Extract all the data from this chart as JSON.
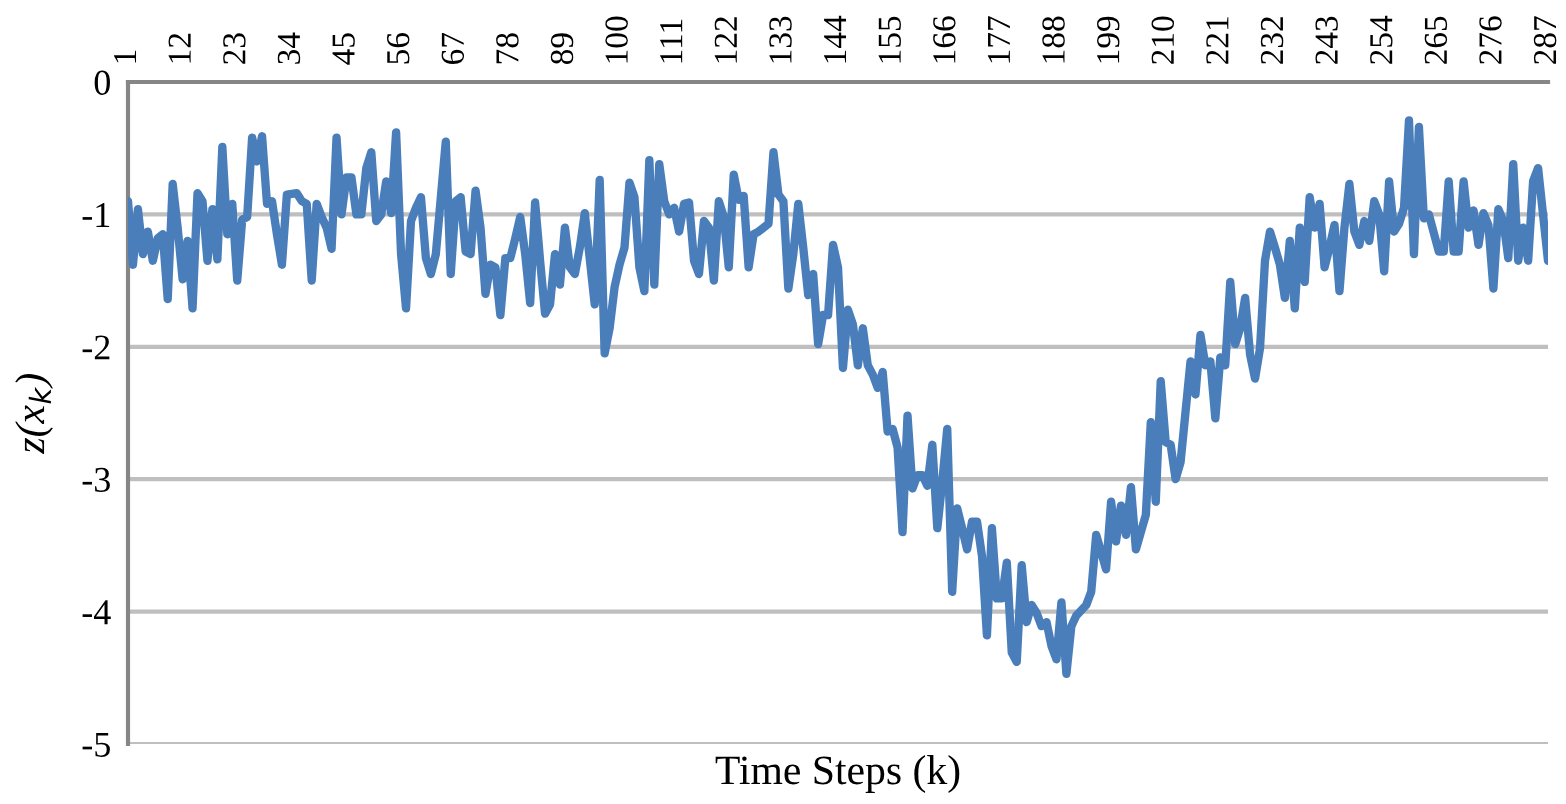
{
  "chart_data": {
    "type": "line",
    "xlabel": "Time Steps (k)",
    "ylabel": "z(x$_{k}$)",
    "x": [
      1,
      2,
      3,
      4,
      5,
      6,
      7,
      8,
      9,
      10,
      11,
      12,
      13,
      14,
      15,
      16,
      17,
      18,
      19,
      20,
      21,
      22,
      23,
      24,
      25,
      26,
      27,
      28,
      29,
      30,
      31,
      32,
      33,
      35,
      36,
      37,
      38,
      39,
      40,
      41,
      42,
      43,
      44,
      45,
      46,
      47,
      48,
      49,
      50,
      51,
      52,
      53,
      54,
      55,
      56,
      57,
      58,
      59,
      60,
      61,
      62,
      63,
      65,
      66,
      67,
      68,
      69,
      70,
      71,
      72,
      73,
      74,
      75,
      76,
      77,
      78,
      79,
      80,
      81,
      82,
      83,
      84,
      85,
      86,
      87,
      88,
      89,
      90,
      91,
      92,
      93,
      95,
      96,
      97,
      98,
      99,
      100,
      101,
      102,
      103,
      104,
      105,
      106,
      107,
      108,
      109,
      110,
      111,
      112,
      113,
      114,
      115,
      116,
      117,
      118,
      119,
      120,
      121,
      122,
      123,
      124,
      125,
      126,
      127,
      128,
      130,
      131,
      132,
      133,
      134,
      135,
      136,
      137,
      138,
      139,
      140,
      141,
      142,
      143,
      144,
      145,
      146,
      147,
      148,
      149,
      150,
      151,
      152,
      153,
      154,
      155,
      156,
      157,
      158,
      159,
      160,
      161,
      162,
      163,
      164,
      165,
      166,
      167,
      168,
      169,
      170,
      171,
      172,
      173,
      174,
      175,
      176,
      177,
      178,
      179,
      180,
      181,
      182,
      183,
      184,
      185,
      186,
      187,
      188,
      189,
      190,
      191,
      192,
      194,
      195,
      196,
      198,
      199,
      200,
      201,
      202,
      203,
      204,
      205,
      206,
      207,
      208,
      209,
      210,
      211,
      212,
      213,
      215,
      216,
      217,
      218,
      219,
      220,
      221,
      222,
      223,
      224,
      225,
      226,
      227,
      228,
      229,
      230,
      231,
      232,
      233,
      234,
      235,
      236,
      237,
      238,
      239,
      240,
      241,
      242,
      243,
      244,
      245,
      246,
      247,
      248,
      249,
      250,
      251,
      252,
      253,
      254,
      255,
      256,
      257,
      258,
      259,
      260,
      261,
      262,
      263,
      265,
      266,
      267,
      268,
      269,
      270,
      271,
      272,
      273,
      274,
      275,
      276,
      277,
      278,
      279,
      280,
      281,
      282,
      283,
      284,
      285,
      287
    ],
    "values": [
      -0.9,
      -1.38,
      -0.96,
      -1.3,
      -1.13,
      -1.35,
      -1.18,
      -1.15,
      -1.64,
      -0.77,
      -1.1,
      -1.49,
      -1.2,
      -1.71,
      -0.84,
      -0.9,
      -1.35,
      -0.96,
      -1.34,
      -0.49,
      -1.15,
      -0.92,
      -1.5,
      -1.04,
      -1.02,
      -0.42,
      -0.6,
      -0.41,
      -0.92,
      -0.9,
      -1.15,
      -1.38,
      -0.85,
      -0.84,
      -0.9,
      -0.92,
      -1.5,
      -0.92,
      -1.02,
      -1.1,
      -1.26,
      -0.42,
      -1.0,
      -0.72,
      -0.72,
      -1.0,
      -1.0,
      -0.65,
      -0.53,
      -1.05,
      -1.0,
      -0.75,
      -0.99,
      -0.38,
      -1.3,
      -1.71,
      -1.05,
      -0.95,
      -0.87,
      -1.33,
      -1.45,
      -1.3,
      -0.45,
      -1.45,
      -0.9,
      -0.87,
      -1.28,
      -1.3,
      -0.82,
      -1.1,
      -1.6,
      -1.38,
      -1.4,
      -1.76,
      -1.33,
      -1.33,
      -1.18,
      -1.02,
      -1.3,
      -1.67,
      -0.91,
      -1.35,
      -1.75,
      -1.68,
      -1.3,
      -1.53,
      -1.1,
      -1.4,
      -1.45,
      -1.25,
      -0.99,
      -1.68,
      -0.74,
      -2.05,
      -1.86,
      -1.55,
      -1.38,
      -1.25,
      -0.76,
      -0.87,
      -1.4,
      -1.58,
      -0.59,
      -1.53,
      -0.62,
      -0.9,
      -1.0,
      -0.95,
      -1.13,
      -0.92,
      -0.91,
      -1.35,
      -1.45,
      -1.05,
      -1.1,
      -1.5,
      -0.9,
      -1.02,
      -1.4,
      -0.7,
      -0.89,
      -0.86,
      -1.4,
      -1.15,
      -1.13,
      -1.07,
      -0.53,
      -0.85,
      -0.9,
      -1.56,
      -1.3,
      -0.92,
      -1.25,
      -1.61,
      -1.45,
      -1.98,
      -1.76,
      -1.76,
      -1.23,
      -1.4,
      -2.16,
      -1.72,
      -1.83,
      -2.14,
      -1.86,
      -2.14,
      -2.21,
      -2.31,
      -2.19,
      -2.64,
      -2.62,
      -2.76,
      -3.4,
      -2.52,
      -3.07,
      -2.97,
      -2.97,
      -3.05,
      -2.74,
      -3.37,
      -3.02,
      -2.62,
      -3.85,
      -3.22,
      -3.37,
      -3.53,
      -3.32,
      -3.32,
      -3.58,
      -4.18,
      -3.37,
      -3.9,
      -3.9,
      -3.63,
      -4.31,
      -4.38,
      -3.65,
      -4.08,
      -3.95,
      -4.01,
      -4.11,
      -4.08,
      -4.26,
      -4.36,
      -3.93,
      -4.47,
      -4.11,
      -4.03,
      -3.95,
      -3.85,
      -3.42,
      -3.68,
      -3.17,
      -3.47,
      -3.2,
      -3.42,
      -3.06,
      -3.53,
      -3.4,
      -3.27,
      -2.57,
      -3.17,
      -2.26,
      -2.72,
      -2.74,
      -3.0,
      -2.87,
      -2.11,
      -2.36,
      -1.91,
      -2.14,
      -2.11,
      -2.54,
      -2.08,
      -2.14,
      -1.51,
      -1.98,
      -1.86,
      -1.63,
      -2.06,
      -2.24,
      -2.01,
      -1.35,
      -1.13,
      -1.25,
      -1.38,
      -1.63,
      -1.2,
      -1.71,
      -1.1,
      -1.51,
      -0.87,
      -1.1,
      -0.92,
      -1.4,
      -1.25,
      -1.08,
      -1.58,
      -1.1,
      -0.77,
      -1.13,
      -1.23,
      -1.05,
      -1.2,
      -0.9,
      -1.0,
      -1.43,
      -0.75,
      -1.13,
      -1.07,
      -0.95,
      -0.29,
      -1.3,
      -0.34,
      -1.03,
      -1.0,
      -1.28,
      -1.28,
      -0.75,
      -1.28,
      -1.28,
      -0.75,
      -1.1,
      -0.97,
      -1.23,
      -0.99,
      -1.08,
      -1.56,
      -0.96,
      -1.05,
      -1.33,
      -0.62,
      -1.35,
      -1.1,
      -1.35,
      -0.75,
      -0.65,
      -1.35
    ],
    "color": "#4a7ebb",
    "xlim": [
      1,
      287
    ],
    "xticks": [
      1,
      12,
      23,
      34,
      45,
      56,
      67,
      78,
      89,
      100,
      111,
      122,
      133,
      144,
      155,
      166,
      177,
      188,
      199,
      210,
      221,
      232,
      243,
      254,
      265,
      276,
      287
    ],
    "ylim": [
      -5,
      0
    ],
    "yticks": [
      -5,
      -4,
      -3,
      -2,
      -1,
      0
    ],
    "grid": "y"
  }
}
